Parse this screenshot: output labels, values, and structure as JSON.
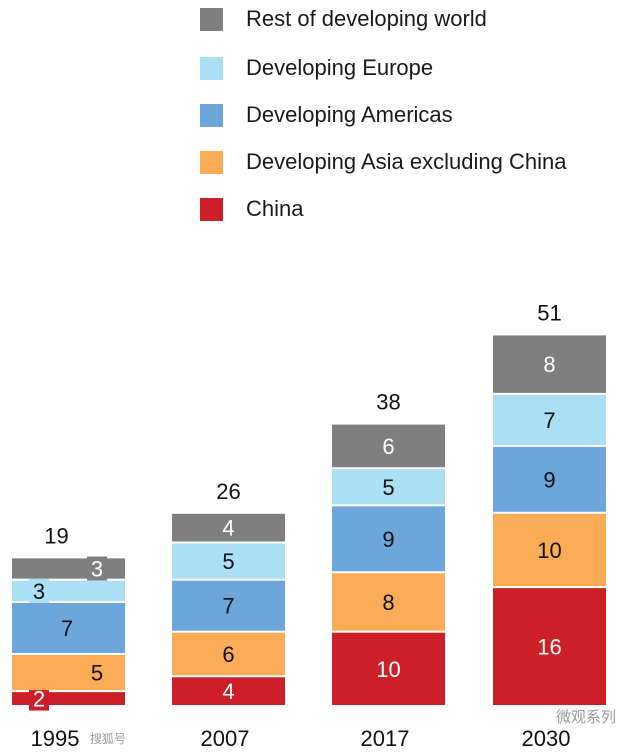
{
  "chart_data": {
    "type": "bar",
    "stacked": true,
    "title": "",
    "xlabel": "",
    "ylabel": "",
    "categories": [
      "1995",
      "2007",
      "2017",
      "2030"
    ],
    "totals": [
      19,
      26,
      38,
      51
    ],
    "series": [
      {
        "name": "China",
        "color": "#cc1f27",
        "label_color": "#ffffff",
        "values": [
          2,
          4,
          10,
          16
        ]
      },
      {
        "name": "Developing Asia excluding China",
        "color": "#f9ac55",
        "label_color": "#111111",
        "values": [
          5,
          6,
          8,
          10
        ]
      },
      {
        "name": "Developing Americas",
        "color": "#6ca6da",
        "label_color": "#111111",
        "values": [
          7,
          7,
          9,
          9
        ]
      },
      {
        "name": "Developing Europe",
        "color": "#aadff4",
        "label_color": "#111111",
        "values": [
          3,
          5,
          5,
          7
        ]
      },
      {
        "name": "Rest of developing world",
        "color": "#7f7f7f",
        "label_color": "#ffffff",
        "values": [
          3,
          4,
          6,
          8
        ]
      }
    ],
    "ylim": [
      0,
      51
    ],
    "grid": false,
    "legend_position": "top"
  },
  "watermark": {
    "left": "搜狐号",
    "right": "微观系列"
  }
}
